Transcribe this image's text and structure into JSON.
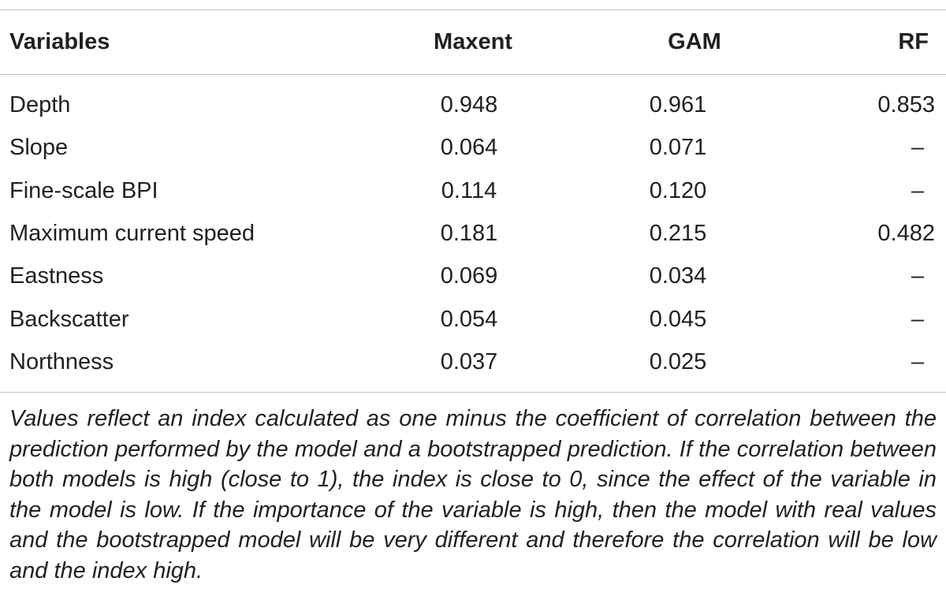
{
  "table": {
    "headers": {
      "variables": "Variables",
      "maxent": "Maxent",
      "gam": "GAM",
      "rf": "RF"
    },
    "rows": [
      {
        "variable": "Depth",
        "maxent": "0.948",
        "gam": "0.961",
        "rf": "0.853"
      },
      {
        "variable": "Slope",
        "maxent": "0.064",
        "gam": "0.071",
        "rf": "–"
      },
      {
        "variable": "Fine-scale BPI",
        "maxent": "0.114",
        "gam": "0.120",
        "rf": "–"
      },
      {
        "variable": "Maximum current speed",
        "maxent": "0.181",
        "gam": "0.215",
        "rf": "0.482"
      },
      {
        "variable": "Eastness",
        "maxent": "0.069",
        "gam": "0.034",
        "rf": "–"
      },
      {
        "variable": "Backscatter",
        "maxent": "0.054",
        "gam": "0.045",
        "rf": "–"
      },
      {
        "variable": "Northness",
        "maxent": "0.037",
        "gam": "0.025",
        "rf": "–"
      }
    ]
  },
  "footnote": "Values reflect an index calculated as one minus the coefficient of correlation between the prediction performed by the model and a bootstrapped prediction. If the correlation between both models is high (close to 1), the index is close to 0, since the effect of the variable in the model is low. If the importance of the variable is high, then the model with real values and the bootstrapped model will be very different and therefore the correlation will be low and the index high."
}
